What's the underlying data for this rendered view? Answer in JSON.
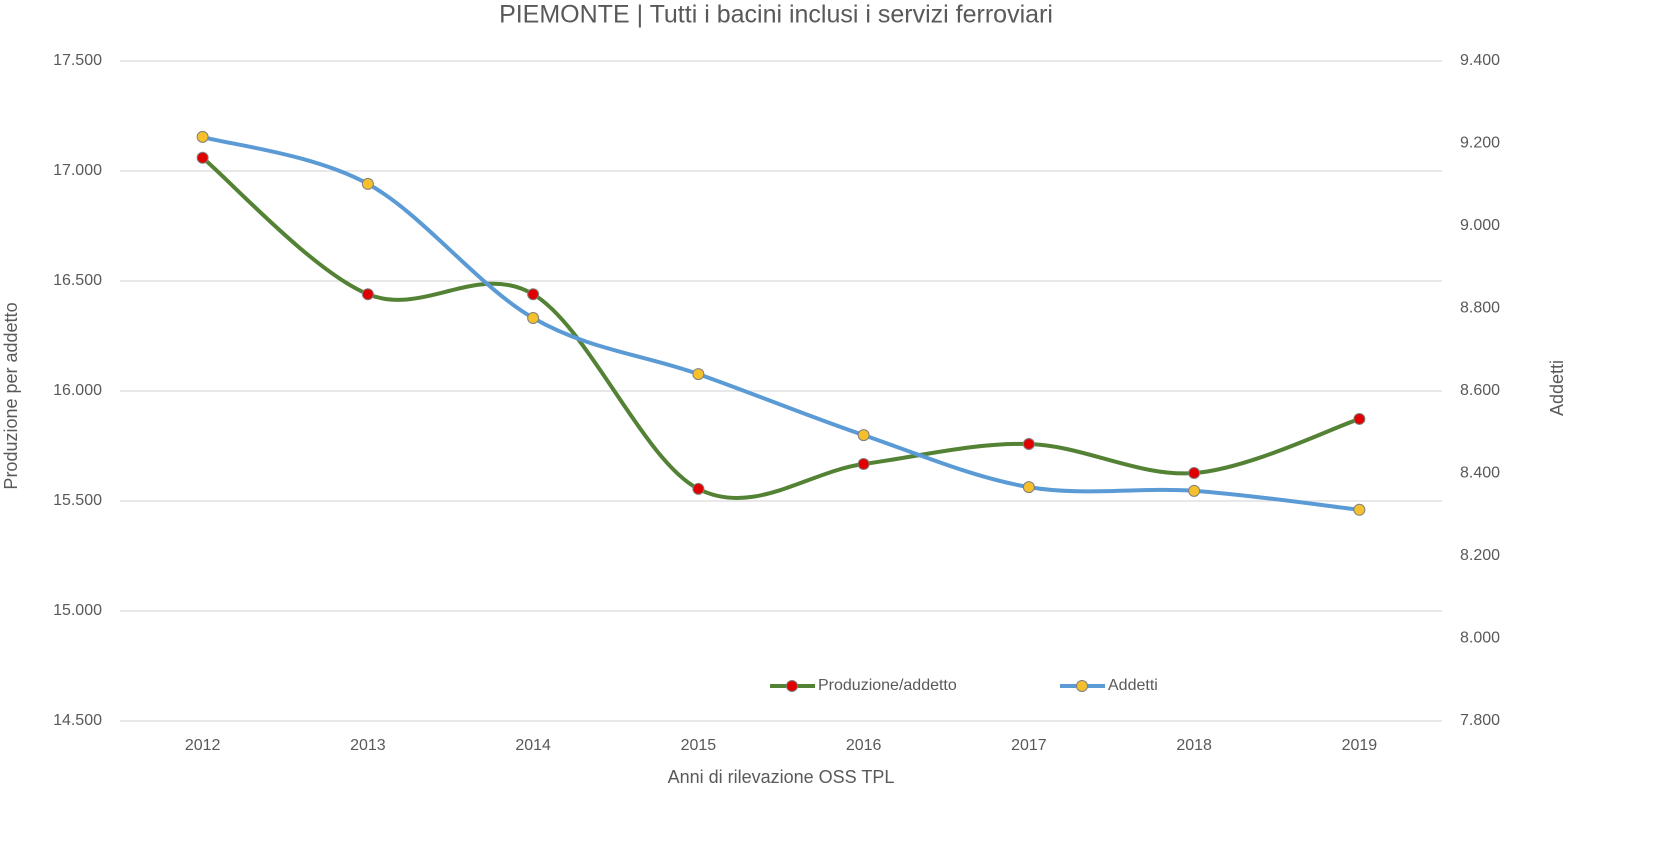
{
  "chart_data": {
    "type": "line",
    "title": "PIEMONTE | Tutti i bacini inclusi i servizi ferroviari",
    "x_label": "Anni di rilevazione OSS TPL",
    "y_label": "Produzione per addetto",
    "y2_label": "Addetti",
    "categories": [
      "2012",
      "2013",
      "2014",
      "2015",
      "2016",
      "2017",
      "2018",
      "2019"
    ],
    "series": [
      {
        "name": "Produzione/addetto",
        "color": "#548235",
        "marker_color": "#e00000",
        "values": [
          17060,
          16440,
          16440,
          15555,
          15668,
          15759,
          15627,
          15873
        ]
      },
      {
        "name": "Addetti",
        "color": "#5b9bd5",
        "marker_color": "#f5c02c",
        "axis": "y2",
        "values": [
          9216,
          9102,
          8777,
          8641,
          8493,
          8367,
          8358,
          8312
        ]
      }
    ],
    "ylim": [
      14500,
      17500
    ],
    "yticks": [
      {
        "value": 14500,
        "label": "14.500"
      },
      {
        "value": 15000,
        "label": "15.000"
      },
      {
        "value": 15500,
        "label": "15.500"
      },
      {
        "value": 16000,
        "label": "16.000"
      },
      {
        "value": 16500,
        "label": "16.500"
      },
      {
        "value": 17000,
        "label": "17.000"
      },
      {
        "value": 17500,
        "label": "17.500"
      }
    ],
    "y2lim": [
      7800,
      9400
    ],
    "y2ticks": [
      {
        "value": 7800,
        "label": "7.800"
      },
      {
        "value": 8000,
        "label": "8.000"
      },
      {
        "value": 8200,
        "label": "8.200"
      },
      {
        "value": 8400,
        "label": "8.400"
      },
      {
        "value": 8600,
        "label": "8.600"
      },
      {
        "value": 8800,
        "label": "8.800"
      },
      {
        "value": 9000,
        "label": "9.000"
      },
      {
        "value": 9200,
        "label": "9.200"
      },
      {
        "value": 9400,
        "label": "9.400"
      }
    ],
    "grid": true,
    "smooth": true,
    "legend": "bottom"
  }
}
